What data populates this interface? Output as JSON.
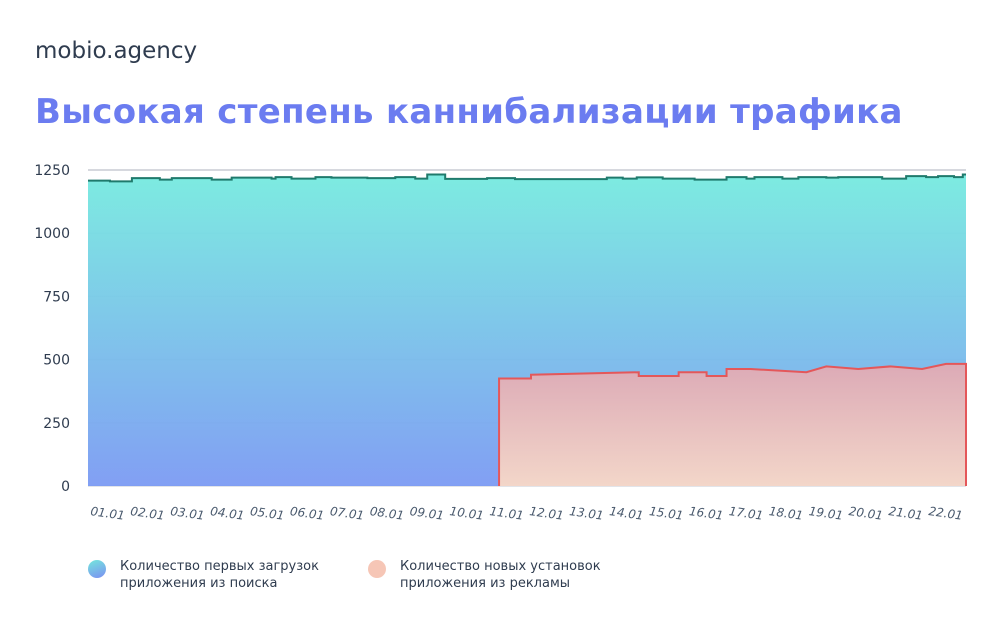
{
  "brand": "mobio.agency",
  "title": "Высокая степень каннибализации трафика",
  "chart_data": {
    "type": "area",
    "title": "",
    "xlabel": "",
    "ylabel": "",
    "ylim": [
      0,
      1250
    ],
    "yticks": [
      "0",
      "250",
      "500",
      "750",
      "1000",
      "1250"
    ],
    "ytick_values": [
      0,
      250,
      500,
      750,
      1000,
      1250
    ],
    "categories": [
      "01.01",
      "02.01",
      "03.01",
      "04.01",
      "05.01",
      "06.01",
      "07.01",
      "08.01",
      "09.01",
      "10.01",
      "11.01",
      "12.01",
      "13.01",
      "14.01",
      "15.01",
      "16.01",
      "17.01",
      "18.01",
      "19.01",
      "20.01",
      "21.01",
      "22.01"
    ],
    "grid": true,
    "legend_position": "bottom",
    "series": [
      {
        "name": "Количество первых загрузок приложения из поиска",
        "name_lines": [
          "Количество первых загрузок",
          "приложения из поиска"
        ],
        "line_color": "#1f7a6c",
        "fill_top": "#76eadf",
        "fill_bottom": "#7b9af3",
        "x": [
          0,
          0.55,
          0.55,
          1.1,
          1.1,
          1.8,
          1.8,
          2.1,
          2.1,
          3.1,
          3.1,
          3.6,
          3.6,
          4.6,
          4.6,
          4.7,
          4.7,
          5.1,
          5.1,
          5.7,
          5.7,
          6.1,
          6.1,
          7.0,
          7.0,
          7.7,
          7.7,
          8.2,
          8.2,
          8.5,
          8.5,
          8.95,
          8.95,
          10.0,
          10.0,
          10.7,
          10.7,
          11.5,
          11.5,
          13.0,
          13.0,
          13.4,
          13.4,
          13.75,
          13.75,
          14.4,
          14.4,
          15.2,
          15.2,
          16.0,
          16.0,
          16.5,
          16.5,
          16.7,
          16.7,
          17.4,
          17.4,
          17.8,
          17.8,
          18.5,
          18.5,
          18.8,
          18.8,
          19.9,
          19.9,
          20.5,
          20.5,
          21.0,
          21.0,
          21.3,
          21.3,
          21.7,
          21.7,
          21.92,
          21.92,
          22.0
        ],
        "values": [
          1208,
          1208,
          1205,
          1205,
          1218,
          1218,
          1212,
          1212,
          1218,
          1218,
          1212,
          1212,
          1220,
          1220,
          1216,
          1216,
          1222,
          1222,
          1216,
          1216,
          1222,
          1222,
          1220,
          1220,
          1218,
          1218,
          1222,
          1222,
          1216,
          1216,
          1232,
          1232,
          1215,
          1215,
          1218,
          1218,
          1214,
          1214,
          1214,
          1214,
          1220,
          1220,
          1216,
          1216,
          1221,
          1221,
          1216,
          1216,
          1212,
          1212,
          1222,
          1222,
          1216,
          1216,
          1222,
          1222,
          1216,
          1216,
          1222,
          1222,
          1220,
          1220,
          1222,
          1222,
          1216,
          1216,
          1226,
          1226,
          1222,
          1222,
          1226,
          1226,
          1222,
          1222,
          1232,
          1232
        ]
      },
      {
        "name": "Количество новых установок приложения из рекламы",
        "name_lines": [
          "Количество новых установок",
          "приложения из рекламы"
        ],
        "line_color": "#e4575a",
        "fill_top": "#dcaab6",
        "fill_bottom": "#f3d6c9",
        "legend_color": "#f6c6b6",
        "x": [
          10.3,
          10.3,
          11.1,
          11.1,
          13.8,
          13.8,
          14.8,
          14.8,
          15.5,
          15.5,
          16.0,
          16.0,
          16.6,
          16.6,
          18.0,
          18.0,
          18.5,
          18.5,
          19.3,
          19.3,
          20.1,
          20.1,
          20.9,
          20.9,
          21.5,
          21.5,
          22.0,
          22.0
        ],
        "values": [
          0,
          425,
          425,
          440,
          450,
          435,
          435,
          450,
          450,
          435,
          435,
          463,
          463,
          463,
          450,
          450,
          473,
          473,
          463,
          463,
          473,
          473,
          463,
          463,
          483,
          483,
          483,
          0
        ]
      }
    ]
  }
}
